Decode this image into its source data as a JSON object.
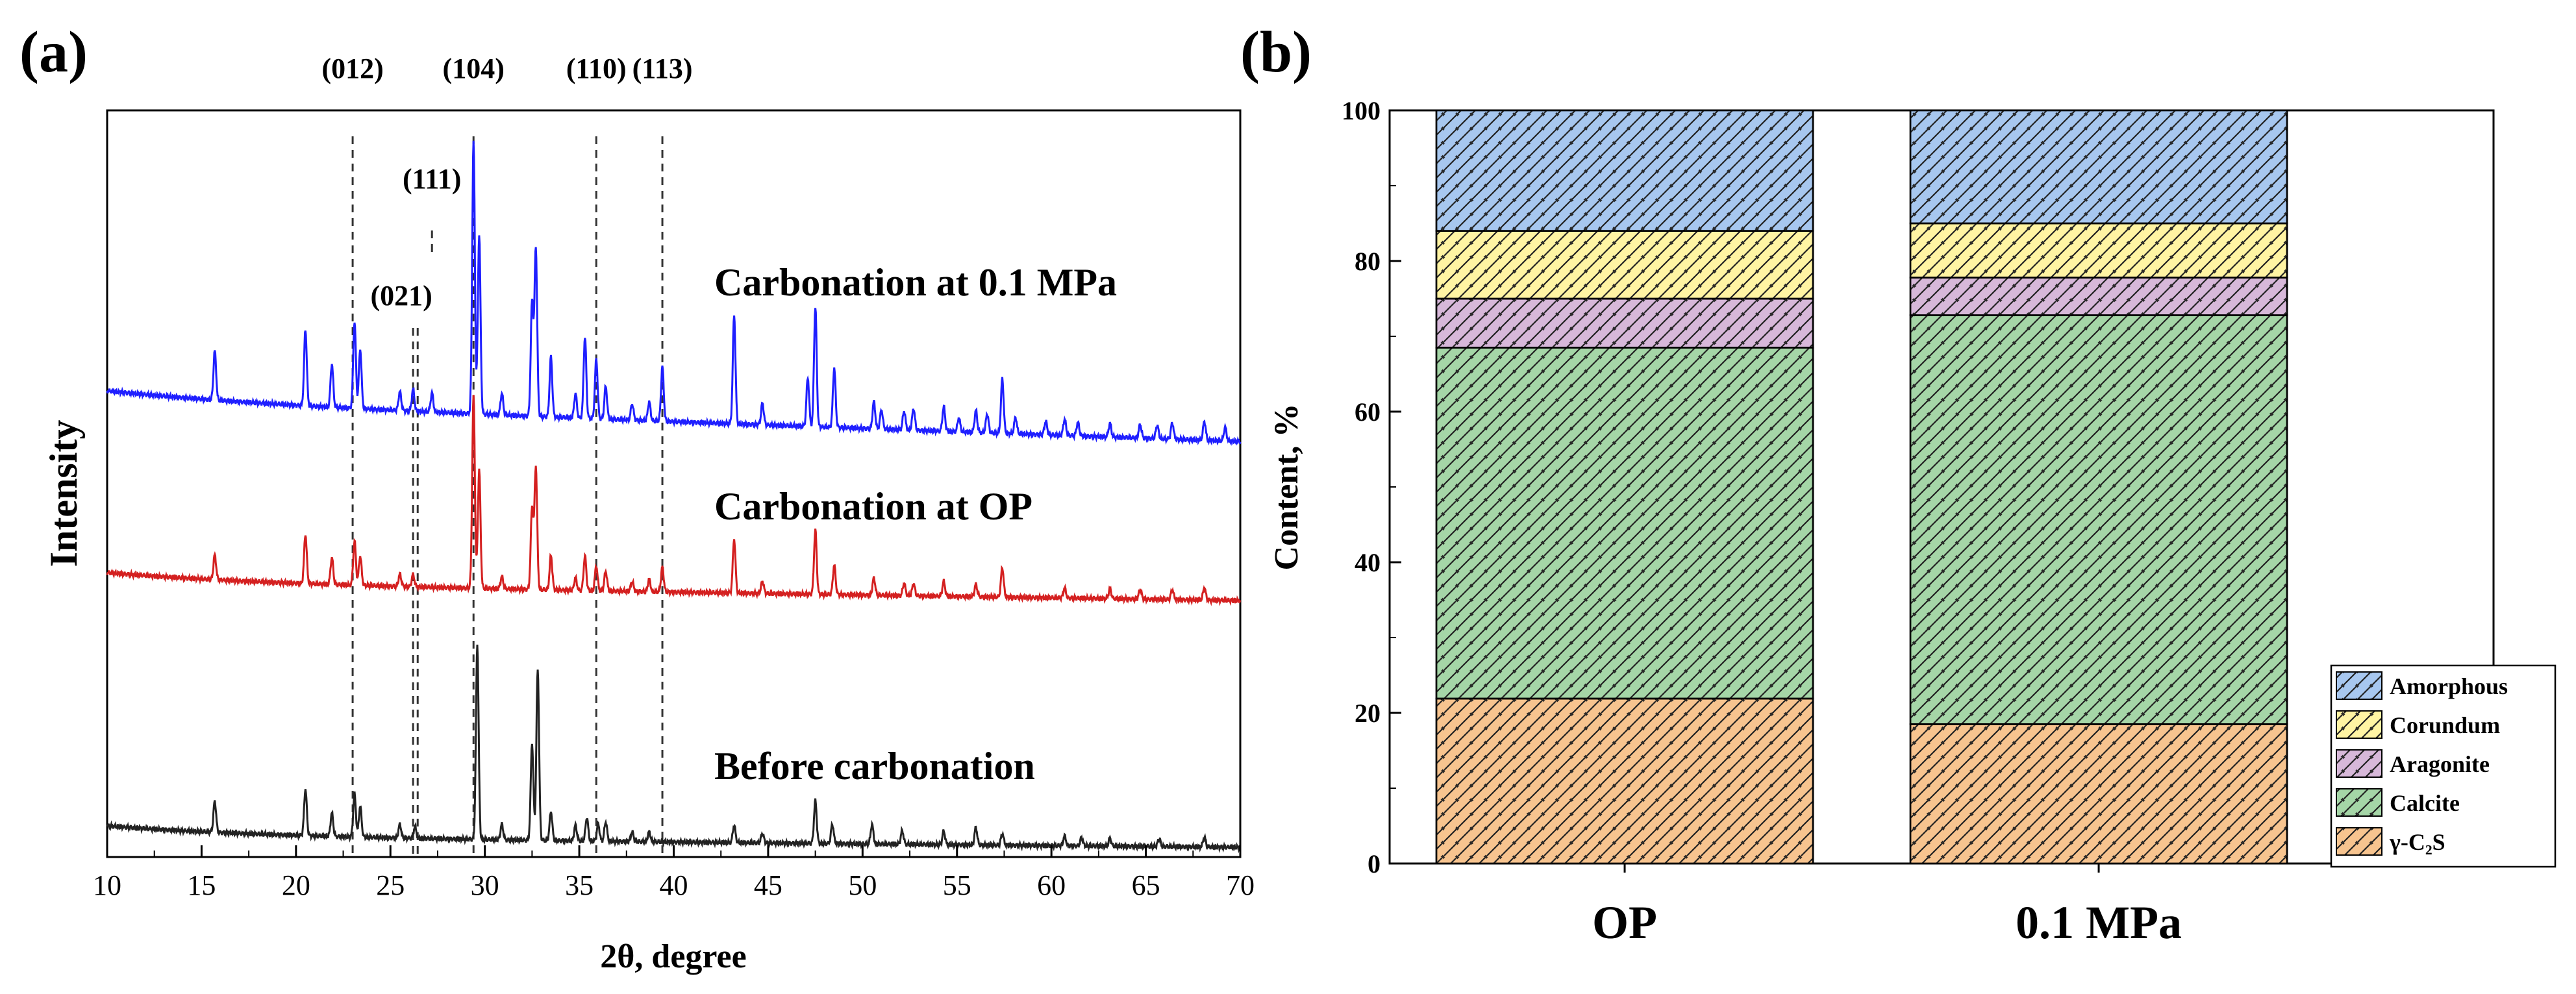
{
  "chart_data": [
    {
      "panel_label": "(a)",
      "type": "line",
      "xlabel": "2θ, degree",
      "ylabel": "Intensity",
      "xlim": [
        10,
        70
      ],
      "x_ticks": [
        "10",
        "15",
        "20",
        "25",
        "30",
        "35",
        "40",
        "45",
        "50",
        "55",
        "60",
        "65",
        "70"
      ],
      "reference_lines": [
        {
          "label": "(012)",
          "x": 23.0
        },
        {
          "label": "(021)",
          "x": 26.2
        },
        {
          "label": "(111)",
          "x": 27.2
        },
        {
          "label": "(104)",
          "x": 29.4
        },
        {
          "label": "(110)",
          "x": 35.9
        },
        {
          "label": "(113)",
          "x": 39.4
        }
      ],
      "series": [
        {
          "name": "Carbonation at 0.1 MPa",
          "color": "#1f1fff",
          "peaks": [
            [
              15.7,
              0.18
            ],
            [
              20.5,
              0.28
            ],
            [
              21.9,
              0.16
            ],
            [
              23.1,
              0.32
            ],
            [
              23.4,
              0.22
            ],
            [
              25.5,
              0.07
            ],
            [
              26.2,
              0.08
            ],
            [
              27.2,
              0.07
            ],
            [
              29.4,
              1.0
            ],
            [
              29.7,
              0.66
            ],
            [
              30.9,
              0.08
            ],
            [
              32.5,
              0.42
            ],
            [
              32.7,
              0.62
            ],
            [
              33.5,
              0.22
            ],
            [
              34.8,
              0.09
            ],
            [
              35.3,
              0.3
            ],
            [
              35.9,
              0.22
            ],
            [
              36.4,
              0.12
            ],
            [
              37.8,
              0.06
            ],
            [
              38.7,
              0.07
            ],
            [
              39.4,
              0.2
            ],
            [
              43.2,
              0.4
            ],
            [
              44.7,
              0.08
            ],
            [
              47.1,
              0.18
            ],
            [
              47.5,
              0.44
            ],
            [
              48.5,
              0.22
            ],
            [
              50.6,
              0.1
            ],
            [
              51.0,
              0.07
            ],
            [
              52.2,
              0.07
            ],
            [
              52.7,
              0.08
            ],
            [
              54.3,
              0.09
            ],
            [
              55.1,
              0.05
            ],
            [
              56.0,
              0.08
            ],
            [
              56.6,
              0.07
            ],
            [
              57.4,
              0.2
            ],
            [
              58.1,
              0.06
            ],
            [
              59.7,
              0.05
            ],
            [
              60.7,
              0.06
            ],
            [
              61.4,
              0.05
            ],
            [
              63.1,
              0.05
            ],
            [
              64.7,
              0.05
            ],
            [
              65.6,
              0.05
            ],
            [
              66.4,
              0.06
            ],
            [
              68.1,
              0.07
            ],
            [
              69.2,
              0.05
            ]
          ]
        },
        {
          "name": "Carbonation at OP",
          "color": "#d42020",
          "peaks": [
            [
              15.7,
              0.1
            ],
            [
              20.5,
              0.2
            ],
            [
              21.9,
              0.11
            ],
            [
              23.1,
              0.18
            ],
            [
              23.4,
              0.12
            ],
            [
              25.5,
              0.05
            ],
            [
              26.2,
              0.05
            ],
            [
              29.4,
              0.78
            ],
            [
              29.7,
              0.48
            ],
            [
              30.9,
              0.05
            ],
            [
              32.5,
              0.33
            ],
            [
              32.7,
              0.5
            ],
            [
              33.5,
              0.14
            ],
            [
              34.8,
              0.05
            ],
            [
              35.3,
              0.14
            ],
            [
              35.9,
              0.1
            ],
            [
              36.4,
              0.08
            ],
            [
              37.8,
              0.04
            ],
            [
              38.7,
              0.05
            ],
            [
              39.4,
              0.1
            ],
            [
              43.2,
              0.22
            ],
            [
              44.7,
              0.05
            ],
            [
              47.5,
              0.26
            ],
            [
              48.5,
              0.12
            ],
            [
              50.6,
              0.07
            ],
            [
              52.2,
              0.05
            ],
            [
              52.7,
              0.05
            ],
            [
              54.3,
              0.06
            ],
            [
              56.0,
              0.05
            ],
            [
              57.4,
              0.12
            ],
            [
              60.7,
              0.04
            ],
            [
              63.1,
              0.04
            ],
            [
              64.7,
              0.04
            ],
            [
              66.4,
              0.04
            ],
            [
              68.1,
              0.05
            ]
          ]
        },
        {
          "name": "Before carbonation",
          "color": "#222222",
          "peaks": [
            [
              15.7,
              0.16
            ],
            [
              20.5,
              0.24
            ],
            [
              21.9,
              0.12
            ],
            [
              23.1,
              0.22
            ],
            [
              23.4,
              0.16
            ],
            [
              25.5,
              0.07
            ],
            [
              26.3,
              0.06
            ],
            [
              29.6,
              1.0
            ],
            [
              30.9,
              0.08
            ],
            [
              32.5,
              0.5
            ],
            [
              32.8,
              0.88
            ],
            [
              33.5,
              0.15
            ],
            [
              34.8,
              0.08
            ],
            [
              35.4,
              0.12
            ],
            [
              36.0,
              0.09
            ],
            [
              36.4,
              0.1
            ],
            [
              37.8,
              0.05
            ],
            [
              38.7,
              0.05
            ],
            [
              43.2,
              0.09
            ],
            [
              44.7,
              0.05
            ],
            [
              47.5,
              0.22
            ],
            [
              48.4,
              0.1
            ],
            [
              50.5,
              0.1
            ],
            [
              52.1,
              0.07
            ],
            [
              54.3,
              0.07
            ],
            [
              56.0,
              0.09
            ],
            [
              57.4,
              0.06
            ],
            [
              60.7,
              0.05
            ],
            [
              61.6,
              0.04
            ],
            [
              63.1,
              0.04
            ],
            [
              65.7,
              0.04
            ],
            [
              68.1,
              0.05
            ]
          ]
        }
      ]
    },
    {
      "panel_label": "(b)",
      "type": "bar",
      "stacked": true,
      "categories": [
        "OP",
        "0.1 MPa"
      ],
      "ylabel": "Content, %",
      "ylim": [
        0,
        100
      ],
      "y_ticks": [
        "0",
        "20",
        "40",
        "60",
        "80",
        "100"
      ],
      "series": [
        {
          "name": "γ-C₂S",
          "color": "#f7c48f",
          "values": [
            21.9,
            18.5
          ]
        },
        {
          "name": "Calcite",
          "color": "#a5d6a7",
          "values": [
            46.6,
            54.3
          ]
        },
        {
          "name": "Aragonite",
          "color": "#d7b8d9",
          "values": [
            6.5,
            5.0
          ]
        },
        {
          "name": "Corundum",
          "color": "#fff4a3",
          "values": [
            9.0,
            7.2
          ]
        },
        {
          "name": "Amorphous",
          "color": "#a7c7ef",
          "values": [
            16.0,
            15.0
          ]
        }
      ],
      "legend_location": "lower-right"
    }
  ]
}
